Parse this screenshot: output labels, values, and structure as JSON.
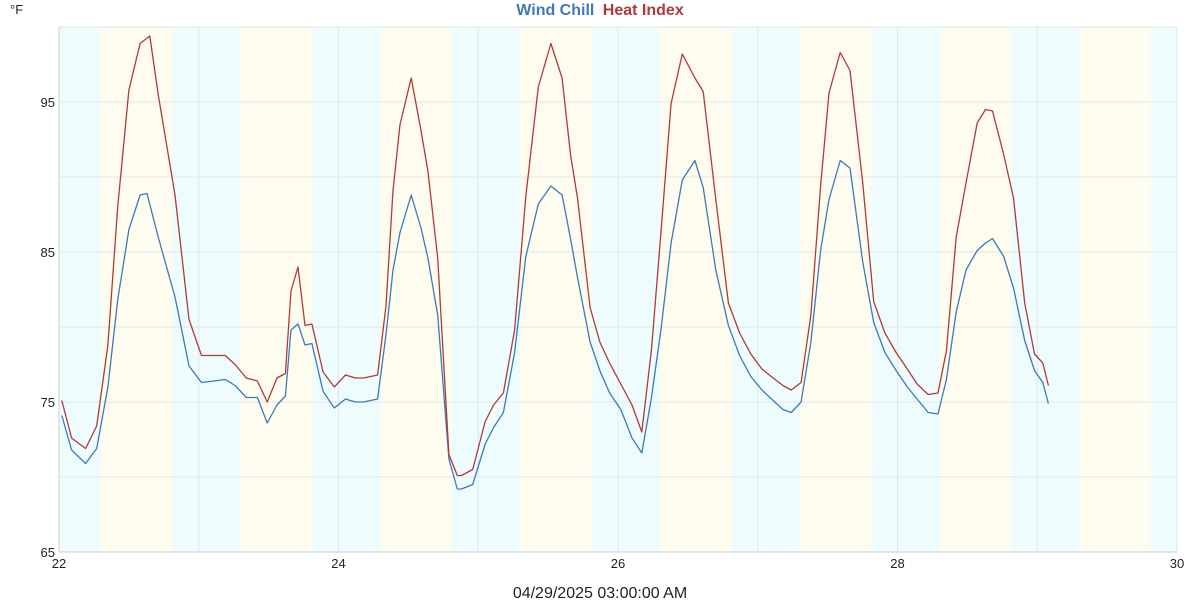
{
  "chart_data": {
    "type": "line",
    "title_parts": [
      {
        "text": "Wind Chill",
        "color": "#3d7ab8"
      },
      {
        "text": "Heat Index",
        "color": "#b03a3a"
      }
    ],
    "unit": "°F",
    "xlabel": "04/29/2025 03:00:00 AM",
    "xlim": [
      22,
      30
    ],
    "ylim": [
      65,
      100
    ],
    "xticks": [
      22,
      24,
      26,
      28,
      30
    ],
    "yticks": [
      65,
      75,
      85,
      95
    ],
    "grid": true,
    "legend": "top-center",
    "night_color": "#eefcfd",
    "day_color": "#fdfcee",
    "grid_color": "#e2e6ea",
    "series": [
      {
        "name": "Wind Chill",
        "color": "#3d7ab8",
        "x": [
          22.02,
          22.09,
          22.19,
          22.27,
          22.35,
          22.42,
          22.5,
          22.58,
          22.63,
          22.71,
          22.83,
          22.93,
          23.02,
          23.11,
          23.19,
          23.26,
          23.34,
          23.42,
          23.49,
          23.56,
          23.62,
          23.66,
          23.71,
          23.76,
          23.81,
          23.89,
          23.97,
          24.05,
          24.12,
          24.18,
          24.28,
          24.34,
          24.39,
          24.44,
          24.52,
          24.59,
          24.64,
          24.71,
          24.79,
          24.85,
          24.88,
          24.96,
          25.05,
          25.11,
          25.18,
          25.26,
          25.34,
          25.43,
          25.52,
          25.6,
          25.66,
          25.71,
          25.8,
          25.87,
          25.94,
          26.02,
          26.1,
          26.17,
          26.24,
          26.31,
          26.38,
          26.46,
          26.55,
          26.61,
          26.7,
          26.79,
          26.87,
          26.95,
          27.03,
          27.11,
          27.18,
          27.24,
          27.31,
          27.38,
          27.45,
          27.51,
          27.59,
          27.66,
          27.75,
          27.83,
          27.91,
          27.99,
          28.07,
          28.14,
          28.22,
          28.29,
          28.35,
          28.42,
          28.49,
          28.57,
          28.63,
          28.68,
          28.76,
          28.83,
          28.91,
          28.98,
          29.04,
          29.08
        ],
        "values": [
          74.1,
          71.8,
          70.9,
          71.9,
          76.0,
          81.8,
          86.5,
          88.8,
          88.9,
          86.0,
          82.0,
          77.4,
          76.3,
          76.4,
          76.5,
          76.1,
          75.3,
          75.3,
          73.6,
          74.8,
          75.4,
          79.8,
          80.2,
          78.8,
          78.9,
          75.7,
          74.6,
          75.2,
          75.0,
          75.0,
          75.2,
          79.5,
          83.8,
          86.3,
          88.8,
          86.6,
          84.6,
          80.8,
          71.2,
          69.2,
          69.2,
          69.5,
          72.2,
          73.3,
          74.3,
          78.3,
          84.7,
          88.2,
          89.4,
          88.8,
          85.9,
          83.3,
          79.0,
          77.1,
          75.6,
          74.5,
          72.6,
          71.6,
          75.3,
          80.0,
          85.6,
          89.8,
          91.1,
          89.3,
          83.8,
          80.1,
          78.1,
          76.7,
          75.8,
          75.1,
          74.5,
          74.3,
          75.0,
          79.0,
          85.1,
          88.5,
          91.1,
          90.6,
          84.4,
          80.3,
          78.3,
          77.1,
          76.0,
          75.2,
          74.3,
          74.2,
          76.5,
          81.0,
          83.8,
          85.1,
          85.6,
          85.9,
          84.7,
          82.6,
          79.1,
          77.1,
          76.3,
          74.9
        ]
      },
      {
        "name": "Heat Index",
        "color": "#b03a3a",
        "x": [
          22.02,
          22.09,
          22.19,
          22.27,
          22.35,
          22.42,
          22.5,
          22.58,
          22.65,
          22.71,
          22.83,
          22.93,
          23.02,
          23.11,
          23.19,
          23.26,
          23.34,
          23.42,
          23.49,
          23.56,
          23.62,
          23.66,
          23.71,
          23.76,
          23.81,
          23.89,
          23.97,
          24.05,
          24.12,
          24.18,
          24.28,
          24.34,
          24.39,
          24.44,
          24.52,
          24.59,
          24.64,
          24.71,
          24.79,
          24.85,
          24.88,
          24.96,
          25.05,
          25.11,
          25.18,
          25.26,
          25.34,
          25.43,
          25.52,
          25.6,
          25.66,
          25.71,
          25.8,
          25.87,
          25.94,
          26.02,
          26.1,
          26.17,
          26.24,
          26.31,
          26.38,
          26.46,
          26.55,
          26.61,
          26.7,
          26.79,
          26.87,
          26.95,
          27.03,
          27.11,
          27.18,
          27.24,
          27.31,
          27.38,
          27.45,
          27.51,
          27.59,
          27.66,
          27.75,
          27.83,
          27.91,
          27.99,
          28.07,
          28.14,
          28.22,
          28.29,
          28.35,
          28.42,
          28.49,
          28.57,
          28.63,
          28.68,
          28.76,
          28.83,
          28.91,
          28.98,
          29.04,
          29.08
        ],
        "values": [
          75.1,
          72.6,
          71.9,
          73.4,
          78.8,
          88.0,
          95.8,
          98.9,
          99.4,
          95.5,
          88.8,
          80.5,
          78.1,
          78.1,
          78.1,
          77.5,
          76.6,
          76.4,
          75.0,
          76.6,
          76.9,
          82.4,
          84.0,
          80.1,
          80.2,
          77.0,
          76.0,
          76.8,
          76.6,
          76.6,
          76.8,
          81.4,
          89.1,
          93.5,
          96.6,
          93.1,
          90.4,
          84.6,
          71.5,
          70.1,
          70.1,
          70.5,
          73.7,
          74.8,
          75.6,
          79.8,
          88.7,
          96.0,
          98.9,
          96.6,
          91.5,
          88.6,
          81.3,
          79.0,
          77.6,
          76.2,
          74.8,
          73.0,
          78.5,
          86.6,
          94.9,
          98.2,
          96.6,
          95.7,
          88.5,
          81.6,
          79.6,
          78.2,
          77.2,
          76.6,
          76.1,
          75.8,
          76.3,
          80.8,
          89.4,
          95.6,
          98.3,
          97.1,
          89.7,
          81.7,
          79.6,
          78.3,
          77.2,
          76.2,
          75.5,
          75.6,
          78.4,
          86.0,
          89.6,
          93.6,
          94.5,
          94.4,
          91.5,
          88.6,
          81.6,
          78.2,
          77.6,
          76.1
        ]
      }
    ]
  }
}
